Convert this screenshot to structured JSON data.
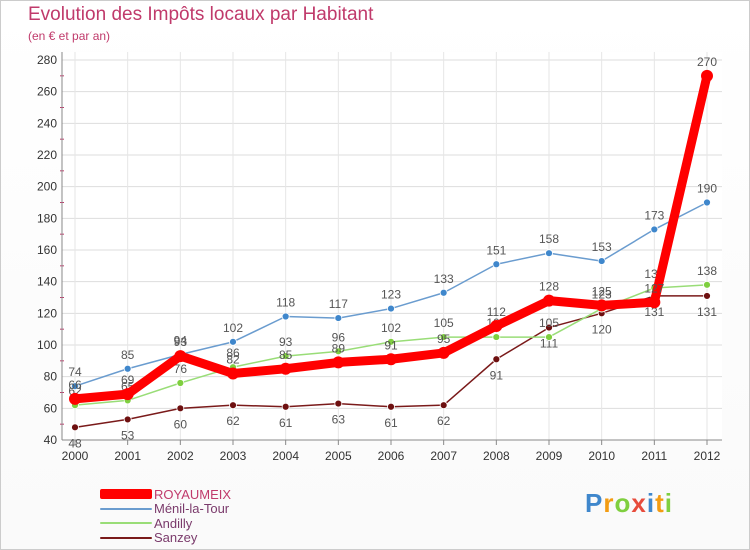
{
  "header": {
    "title": "Evolution des Impôts locaux par Habitant",
    "subtitle": "(en € et par an)"
  },
  "logo": {
    "letters": [
      "P",
      "r",
      "o",
      "x",
      "i",
      "t",
      "i"
    ]
  },
  "chart_data": {
    "type": "line",
    "title": "Evolution des Impôts locaux par Habitant",
    "subtitle": "(en € et par an)",
    "x": [
      "2000",
      "2001",
      "2002",
      "2003",
      "2004",
      "2005",
      "2006",
      "2007",
      "2008",
      "2009",
      "2010",
      "2011",
      "2012"
    ],
    "ylim": [
      40,
      280
    ],
    "yticks": [
      40,
      60,
      80,
      100,
      120,
      140,
      160,
      180,
      200,
      220,
      240,
      260,
      280
    ],
    "grid": true,
    "legend": "bottom-left",
    "series": [
      {
        "name": "Sanzey",
        "color": "#7a1a1a",
        "marker": "#6e1010",
        "values": [
          48,
          53,
          60,
          62,
          61,
          63,
          61,
          62,
          91,
          111,
          120,
          131,
          131
        ]
      },
      {
        "name": "Andilly",
        "color": "#99dd77",
        "marker": "#7fcf3f",
        "values": [
          62,
          65,
          76,
          86,
          93,
          96,
          102,
          105,
          105,
          105,
          123,
          136,
          138
        ]
      },
      {
        "name": "Ménil-la-Tour",
        "color": "#6a9ccf",
        "marker": "#3f87cc",
        "values": [
          74,
          85,
          94,
          102,
          118,
          117,
          123,
          133,
          151,
          158,
          153,
          173,
          190
        ]
      },
      {
        "name": "ROYAUMEIX",
        "color": "#ff0000",
        "marker": "#ff0000",
        "values": [
          66,
          69,
          93,
          82,
          85,
          89,
          91,
          95,
          112,
          128,
          125,
          127,
          270
        ]
      }
    ],
    "legend_order": [
      "ROYAUMEIX",
      "Ménil-la-Tour",
      "Andilly",
      "Sanzey"
    ]
  }
}
